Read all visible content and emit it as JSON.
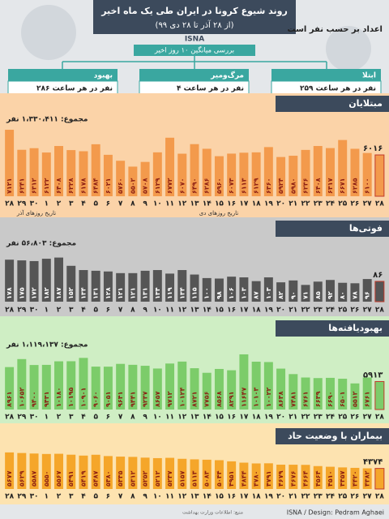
{
  "header": {
    "title": "روند شیوع کرونا در ایران طی یک ماه اخیر",
    "subtitle": "(از ۲۸ آذر تا ۲۸ دی ۹۹)",
    "brand": "ISNA",
    "unit_note": "اعداد بر حسب نفر است",
    "avg_note": "بررسی میانگین ۱۰ روز اخیر",
    "boxes": [
      {
        "title": "بهبود",
        "text": "۲۸۶ نفر در هر ساعت"
      },
      {
        "title": "مرگ‌ومیر",
        "text": "۴ نفر در هر ساعت"
      },
      {
        "title": "ابتلا",
        "text": "۲۵۹ نفر در هر ساعت"
      }
    ]
  },
  "footer": {
    "credit": "ISNA / Design: Pedram Aghaei",
    "source": "منبع: اطلاعات وزارت بهداشت"
  },
  "chart_data": [
    {
      "type": "bar",
      "title": "مبتلایان",
      "total": "مجموع: ۱،۳۳۰،۴۱۱ نفر",
      "color": "#f39a4c",
      "background": "#fbd3a8",
      "label_color": "#8b1e12",
      "x_labels": [
        "تاریخ روزهای آذر",
        "تاریخ روزهای دی"
      ],
      "categories": [
        "۲۸",
        "۲۹",
        "۳۰",
        "۱",
        "۲",
        "۳",
        "۴",
        "۵",
        "۶",
        "۷",
        "۸",
        "۹",
        "۱۰",
        "۱۱",
        "۱۲",
        "۱۳",
        "۱۴",
        "۱۵",
        "۱۶",
        "۱۷",
        "۱۸",
        "۱۹",
        "۲۰",
        "۲۱",
        "۲۲",
        "۲۳",
        "۲۴",
        "۲۵",
        "۲۶",
        "۲۷",
        "۲۸"
      ],
      "values": [
        7121,
        6241,
        6312,
        6122,
        6408,
        6228,
        6178,
        6484,
        6021,
        5760,
        5502,
        5708,
        6129,
        6772,
        6070,
        6490,
        6286,
        5960,
        6073,
        6113,
        6129,
        6360,
        5924,
        5980,
        6236,
        6408,
        6317,
        6671,
        6285,
        6100,
        6016
      ],
      "value_labels": [
        "۷۱۲۱",
        "۶۲۴۱",
        "۶۳۱۲",
        "۶۱۲۲",
        "۶۴۰۸",
        "۶۲۲۸",
        "۶۱۷۸",
        "۶۴۸۴",
        "۶۰۲۱",
        "۵۷۶۰",
        "۵۵۰۲",
        "۵۷۰۸",
        "۶۱۲۹",
        "۶۷۷۲",
        "۶۰۷۰",
        "۶۴۹۰",
        "۶۲۸۶",
        "۵۹۶۰",
        "۶۰۷۳",
        "۶۱۱۳",
        "۶۱۲۹",
        "۶۳۶۰",
        "۵۹۲۴",
        "۵۹۸۰",
        "۶۲۳۶",
        "۶۴۰۸",
        "۶۳۱۷",
        "۶۶۷۱",
        "۶۲۸۵",
        "۶۱۰۰",
        "۶۰۱۶"
      ],
      "ylim": [
        4200,
        7300
      ]
    },
    {
      "type": "bar",
      "title": "فوتی‌ها",
      "total": "مجموع: ۵۶،۸۰۳ نفر",
      "color": "#555555",
      "background": "#c9c9c9",
      "label_color": "#ffffff",
      "categories": [
        "۲۸",
        "۲۹",
        "۳۰",
        "۱",
        "۲",
        "۳",
        "۴",
        "۵",
        "۶",
        "۷",
        "۸",
        "۹",
        "۱۰",
        "۱۱",
        "۱۲",
        "۱۳",
        "۱۴",
        "۱۵",
        "۱۶",
        "۱۷",
        "۱۸",
        "۱۹",
        "۲۰",
        "۲۱",
        "۲۲",
        "۲۳",
        "۲۴",
        "۲۵",
        "۲۶",
        "۲۷",
        "۲۸"
      ],
      "values": [
        178,
        175,
        172,
        182,
        187,
        152,
        134,
        131,
        128,
        121,
        121,
        131,
        134,
        119,
        134,
        115,
        100,
        98,
        106,
        103,
        87,
        103,
        82,
        90,
        71,
        85,
        92,
        80,
        78,
        96,
        86
      ],
      "value_labels": [
        "۱۷۸",
        "۱۷۵",
        "۱۷۲",
        "۱۸۲",
        "۱۸۷",
        "۱۵۲",
        "۱۳۴",
        "۱۳۱",
        "۱۲۸",
        "۱۲۱",
        "۱۲۱",
        "۱۳۱",
        "۱۳۴",
        "۱۱۹",
        "۱۳۴",
        "۱۱۵",
        "۱۰۰",
        "۹۸",
        "۱۰۶",
        "۱۰۳",
        "۸۷",
        "۱۰۳",
        "۸۲",
        "۹۰",
        "۷۱",
        "۸۵",
        "۹۲",
        "۸۰",
        "۷۸",
        "۹۶",
        "۸۶"
      ],
      "ylim": [
        0,
        220
      ]
    },
    {
      "type": "bar",
      "title": "بهبودیافته‌ها",
      "total": "مجموع: ۱،۱۱۹،۱۳۷ نفر",
      "color": "#7ccc6a",
      "background": "#cfeec4",
      "label_color": "#8b1e12",
      "categories": [
        "۲۸",
        "۲۹",
        "۳۰",
        "۱",
        "۲",
        "۳",
        "۴",
        "۵",
        "۶",
        "۷",
        "۸",
        "۹",
        "۱۰",
        "۱۱",
        "۱۲",
        "۱۳",
        "۱۴",
        "۱۵",
        "۱۶",
        "۱۷",
        "۱۸",
        "۱۹",
        "۲۰",
        "۲۱",
        "۲۲",
        "۲۳",
        "۲۴",
        "۲۵",
        "۲۶",
        "۲۷",
        "۲۸"
      ],
      "values": [
        8961,
        10652,
        9400,
        9431,
        10180,
        10195,
        10901,
        9060,
        9051,
        9641,
        9441,
        9237,
        8657,
        9712,
        10124,
        8721,
        7756,
        8568,
        8291,
        11647,
        10103,
        10022,
        8638,
        7481,
        6761,
        6639,
        6690,
        6501,
        5512,
        6761,
        5913
      ],
      "value_labels": [
        "۸۹۶۱",
        "۱۰۶۵۲",
        "۹۴۰۰",
        "۹۴۳۱",
        "۱۰۱۸۰",
        "۱۰۱۹۵",
        "۱۰۹۰۱",
        "۹۰۶۰",
        "۹۰۵۱",
        "۹۶۴۱",
        "۹۴۴۱",
        "۹۲۳۷",
        "۸۶۵۷",
        "۹۷۱۲",
        "۱۰۱۲۴",
        "۸۷۲۱",
        "۷۷۵۶",
        "۸۵۶۸",
        "۸۲۹۱",
        "۱۱۶۴۷",
        "۱۰۱۰۳",
        "۱۰۰۲۲",
        "۸۶۳۸",
        "۷۴۸۱",
        "۶۷۶۱",
        "۶۶۳۹",
        "۶۶۹۰",
        "۶۵۰۱",
        "۵۵۱۲",
        "۶۷۶۱",
        "۵۹۱۳"
      ],
      "ylim": [
        0,
        12500
      ]
    },
    {
      "type": "bar",
      "title": "بیماران با وضعیت حاد",
      "color": "#f5a62a",
      "background": "#fde3b0",
      "label_color": "#8b1e12",
      "categories": [
        "۲۸",
        "۲۹",
        "۳۰",
        "۱",
        "۲",
        "۳",
        "۴",
        "۵",
        "۶",
        "۷",
        "۸",
        "۹",
        "۱۰",
        "۱۱",
        "۱۲",
        "۱۳",
        "۱۴",
        "۱۵",
        "۱۶",
        "۱۷",
        "۱۸",
        "۱۹",
        "۲۰",
        "۲۱",
        "۲۲",
        "۲۳",
        "۲۴",
        "۲۵",
        "۲۶",
        "۲۷",
        "۲۸"
      ],
      "values": [
        5677,
        5629,
        5587,
        5550,
        5567,
        5491,
        5419,
        5487,
        5380,
        5335,
        5312,
        5252,
        5212,
        5237,
        5157,
        5113,
        5083,
        5044,
        4951,
        4844,
        4780,
        4791,
        4679,
        4676,
        4664,
        4564,
        4510,
        4457,
        4420,
        4382,
        4374
      ],
      "value_labels": [
        "۵۶۷۷",
        "۵۶۲۹",
        "۵۵۸۷",
        "۵۵۵۰",
        "۵۵۶۷",
        "۵۴۹۱",
        "۵۴۱۹",
        "۵۴۸۷",
        "۵۳۸۰",
        "۵۳۳۵",
        "۵۳۱۲",
        "۵۲۵۲",
        "۵۲۱۲",
        "۵۲۳۷",
        "۵۱۵۷",
        "۵۱۱۳",
        "۵۰۸۳",
        "۵۰۴۴",
        "۴۹۵۱",
        "۴۸۴۴",
        "۴۷۸۰",
        "۴۷۹۱",
        "۴۶۷۹",
        "۴۶۷۶",
        "۴۶۶۴",
        "۴۵۶۴",
        "۴۵۱۰",
        "۴۴۵۷",
        "۴۴۲۰",
        "۴۳۸۲",
        "۴۳۷۴"
      ],
      "ylim": [
        2700,
        6000
      ]
    }
  ]
}
